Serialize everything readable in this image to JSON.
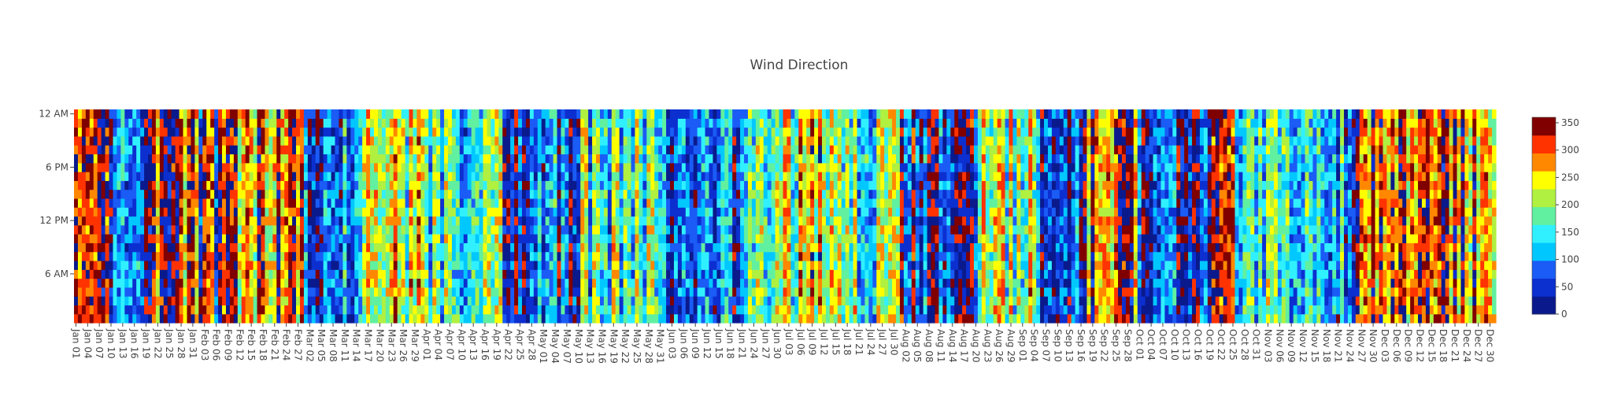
{
  "chart_data": {
    "type": "heatmap",
    "title": "Wind Direction",
    "xlabel": "",
    "ylabel": "",
    "x_start": "Jan 01",
    "x_end": "Dec 31",
    "days": 365,
    "x_ticks": [
      "Jan 01",
      "Jan 04",
      "Jan 07",
      "Jan 10",
      "Jan 13",
      "Jan 16",
      "Jan 19",
      "Jan 22",
      "Jan 25",
      "Jan 28",
      "Jan 31",
      "Feb 03",
      "Feb 06",
      "Feb 09",
      "Feb 12",
      "Feb 15",
      "Feb 18",
      "Feb 21",
      "Feb 24",
      "Feb 27",
      "Mar 02",
      "Mar 05",
      "Mar 08",
      "Mar 11",
      "Mar 14",
      "Mar 17",
      "Mar 20",
      "Mar 23",
      "Mar 26",
      "Mar 29",
      "Apr 01",
      "Apr 04",
      "Apr 07",
      "Apr 10",
      "Apr 13",
      "Apr 16",
      "Apr 19",
      "Apr 22",
      "Apr 25",
      "Apr 28",
      "May 01",
      "May 04",
      "May 07",
      "May 10",
      "May 13",
      "May 16",
      "May 19",
      "May 22",
      "May 25",
      "May 28",
      "May 31",
      "Jun 03",
      "Jun 06",
      "Jun 09",
      "Jun 12",
      "Jun 15",
      "Jun 18",
      "Jun 21",
      "Jun 24",
      "Jun 27",
      "Jun 30",
      "Jul 03",
      "Jul 06",
      "Jul 09",
      "Jul 12",
      "Jul 15",
      "Jul 18",
      "Jul 21",
      "Jul 24",
      "Jul 27",
      "Jul 30",
      "Aug 02",
      "Aug 05",
      "Aug 08",
      "Aug 11",
      "Aug 14",
      "Aug 17",
      "Aug 20",
      "Aug 23",
      "Aug 26",
      "Aug 29",
      "Sep 01",
      "Sep 04",
      "Sep 07",
      "Sep 10",
      "Sep 13",
      "Sep 16",
      "Sep 19",
      "Sep 22",
      "Sep 25",
      "Sep 28",
      "Oct 01",
      "Oct 04",
      "Oct 07",
      "Oct 10",
      "Oct 13",
      "Oct 16",
      "Oct 19",
      "Oct 22",
      "Oct 25",
      "Oct 28",
      "Oct 31",
      "Nov 03",
      "Nov 06",
      "Nov 09",
      "Nov 12",
      "Nov 15",
      "Nov 18",
      "Nov 21",
      "Nov 24",
      "Nov 27",
      "Nov 30",
      "Dec 03",
      "Dec 06",
      "Dec 09",
      "Dec 12",
      "Dec 15",
      "Dec 18",
      "Dec 21",
      "Dec 24",
      "Dec 27",
      "Dec 30"
    ],
    "y_ticks": [
      "6 AM",
      "12 PM",
      "6 PM",
      "12 AM"
    ],
    "y_tick_hours": [
      6,
      12,
      18,
      24
    ],
    "hours_per_day": 24,
    "zlim": [
      0,
      360
    ],
    "colorbar_ticks": [
      0,
      50,
      100,
      150,
      200,
      250,
      300,
      350
    ],
    "colorscale": [
      "#0a1a8c",
      "#0c2fd0",
      "#1a5cf5",
      "#00c8ff",
      "#30f0ff",
      "#60f0a0",
      "#b0f040",
      "#ffff00",
      "#ff8800",
      "#ff3300",
      "#800000"
    ],
    "daily_mean_direction": [
      {
        "from": "Jan 01",
        "to": "Jan 10",
        "value": 300
      },
      {
        "from": "Jan 11",
        "to": "Jan 20",
        "value": 60
      },
      {
        "from": "Jan 21",
        "to": "Jan 31",
        "value": 320
      },
      {
        "from": "Feb 01",
        "to": "Feb 10",
        "value": 340
      },
      {
        "from": "Feb 11",
        "to": "Feb 28",
        "value": 290
      },
      {
        "from": "Mar 01",
        "to": "Mar 15",
        "value": 90
      },
      {
        "from": "Mar 16",
        "to": "Mar 31",
        "value": 220
      },
      {
        "from": "Apr 01",
        "to": "Apr 20",
        "value": 150
      },
      {
        "from": "Apr 21",
        "to": "May 10",
        "value": 60
      },
      {
        "from": "May 11",
        "to": "May 31",
        "value": 160
      },
      {
        "from": "Jun 01",
        "to": "Jun 20",
        "value": 80
      },
      {
        "from": "Jun 21",
        "to": "Jul 05",
        "value": 190
      },
      {
        "from": "Jul 06",
        "to": "Jul 15",
        "value": 240
      },
      {
        "from": "Jul 16",
        "to": "Jul 31",
        "value": 170
      },
      {
        "from": "Aug 01",
        "to": "Aug 20",
        "value": 40
      },
      {
        "from": "Aug 21",
        "to": "Sep 05",
        "value": 200
      },
      {
        "from": "Sep 06",
        "to": "Sep 15",
        "value": 70
      },
      {
        "from": "Sep 16",
        "to": "Sep 30",
        "value": 310
      },
      {
        "from": "Oct 01",
        "to": "Oct 18",
        "value": 60
      },
      {
        "from": "Oct 19",
        "to": "Oct 25",
        "value": 330
      },
      {
        "from": "Oct 26",
        "to": "Nov 10",
        "value": 150
      },
      {
        "from": "Nov 11",
        "to": "Nov 25",
        "value": 110
      },
      {
        "from": "Nov 26",
        "to": "Dec 31",
        "value": 290
      }
    ]
  }
}
